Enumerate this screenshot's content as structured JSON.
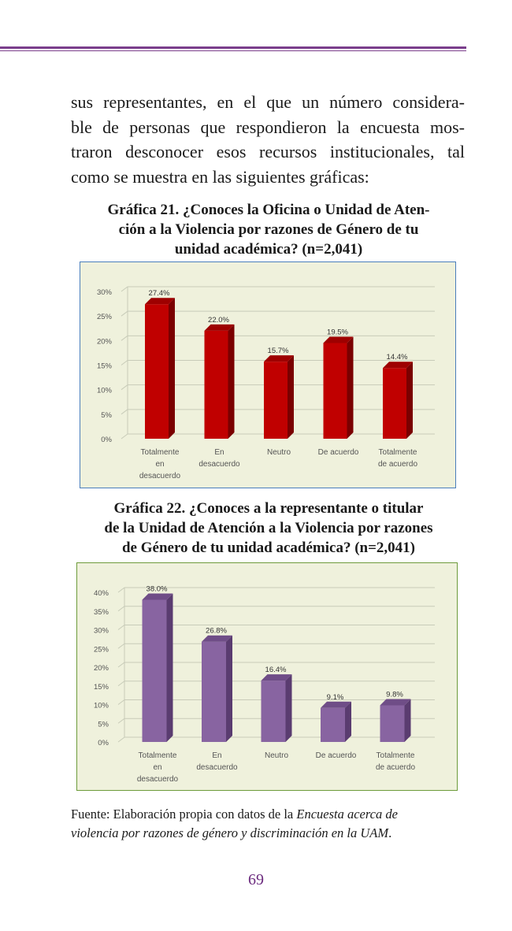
{
  "body_text": {
    "lines": [
      "sus representantes, en el que un número considera-",
      "ble de personas que respondieron la encuesta mos-",
      "traron desconocer esos recursos institucionales, tal",
      "como se muestra en las siguientes gráficas:"
    ]
  },
  "figure21": {
    "caption_lines": [
      "Gráfica 21. ¿Conoces la Oficina o Unidad de Aten-",
      "ción a la Violencia por razones de Género de tu",
      "unidad académica? (n=2,041)"
    ]
  },
  "figure22": {
    "caption_lines": [
      "Gráfica 22. ¿Conoces a la representante o titular",
      "de la Unidad de Atención a la Violencia por razones",
      "de Género de tu unidad académica? (n=2,041)"
    ]
  },
  "chart_data": [
    {
      "type": "bar",
      "categories": [
        [
          "Totalmente",
          "en",
          "desacuerdo"
        ],
        [
          "En",
          "desacuerdo"
        ],
        [
          "Neutro"
        ],
        [
          "De acuerdo"
        ],
        [
          "Totalmente",
          "de acuerdo"
        ]
      ],
      "values": [
        27.4,
        22.0,
        15.7,
        19.5,
        14.4
      ],
      "value_labels": [
        "27.4%",
        "22.0%",
        "15.7%",
        "19.5%",
        "14.4%"
      ],
      "yticks": [
        "0%",
        "5%",
        "10%",
        "15%",
        "20%",
        "25%",
        "30%"
      ],
      "ylim": [
        0,
        30
      ],
      "grid": true,
      "bar_color": "#c00000",
      "bar_side_color": "#7a0000",
      "bar_top_color": "#9e0000"
    },
    {
      "type": "bar",
      "categories": [
        [
          "Totalmente",
          "en",
          "desacuerdo"
        ],
        [
          "En",
          "desacuerdo"
        ],
        [
          "Neutro"
        ],
        [
          "De acuerdo"
        ],
        [
          "Totalmente",
          "de acuerdo"
        ]
      ],
      "values": [
        38.0,
        26.8,
        16.4,
        9.1,
        9.8
      ],
      "value_labels": [
        "38.0%",
        "26.8%",
        "16.4%",
        "9.1%",
        "9.8%"
      ],
      "yticks": [
        "0%",
        "5%",
        "10%",
        "15%",
        "20%",
        "25%",
        "30%",
        "35%",
        "40%"
      ],
      "ylim": [
        0,
        40
      ],
      "grid": true,
      "bar_color": "#8864a1",
      "bar_side_color": "#5a3c70",
      "bar_top_color": "#6f4d87"
    }
  ],
  "source": {
    "line1_plain": "Fuente: Elaboración propia con datos de la ",
    "line1_italic": "Encuesta acerca de",
    "line2_italic": "violencia por razones de género y discriminación en la UAM",
    "line2_plain": "."
  },
  "page_number": "69",
  "colors": {
    "accent": "#7b3f8c",
    "chart_bg": "#eff1dc"
  }
}
